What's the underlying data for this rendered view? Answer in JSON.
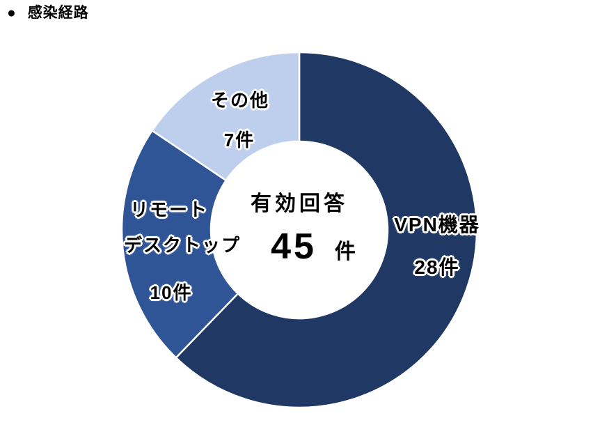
{
  "header": {
    "bullet": "●",
    "title": "感染経路"
  },
  "chart_data": {
    "type": "donut",
    "title": "感染経路",
    "total": 45,
    "start_angle_deg": 0,
    "direction": "clockwise",
    "center": {
      "label": "有効回答",
      "value": "45",
      "unit": "件"
    },
    "colors": {
      "vpn": "#1F3864",
      "remote_desktop": "#2F5597",
      "other": "#BDCFEC",
      "segment_border": "#FFFFFF"
    },
    "segments": [
      {
        "id": "vpn",
        "label": "VPN機器",
        "label_lines": [
          "VPN機器"
        ],
        "value": 28,
        "value_label": "28件",
        "color": "#1F3864"
      },
      {
        "id": "remote-desktop",
        "label": "リモートデスクトップ",
        "label_lines": [
          "リモート",
          "デスクトップ"
        ],
        "value": 10,
        "value_label": "10件",
        "color": "#2F5597"
      },
      {
        "id": "other",
        "label": "その他",
        "label_lines": [
          "その他"
        ],
        "value": 7,
        "value_label": "7件",
        "color": "#BDCFEC"
      }
    ]
  }
}
